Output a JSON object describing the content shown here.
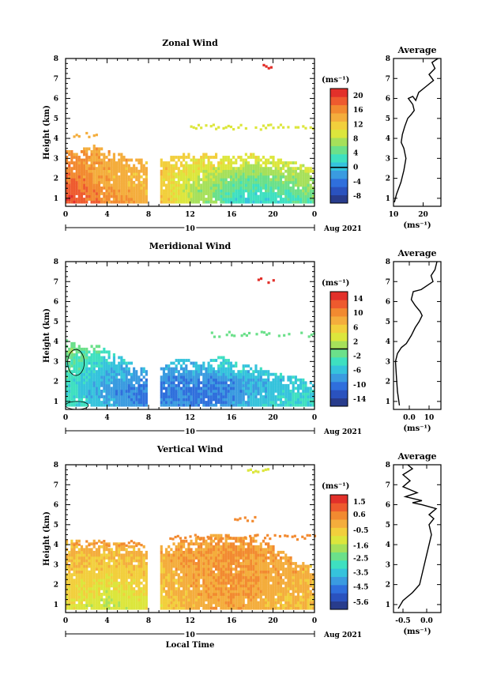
{
  "colors": {
    "palette": [
      "#283c8c",
      "#2a52be",
      "#2f6fdc",
      "#3a9be0",
      "#35c3dc",
      "#3ee0c0",
      "#6be08a",
      "#a6e05a",
      "#dce63c",
      "#f2cf3c",
      "#f4ad3c",
      "#f28a30",
      "#ee5a2e",
      "#e2302a"
    ],
    "contour": "#000000",
    "line": "#000000"
  },
  "chart_data": [
    {
      "type": "heatmap",
      "title": "Zonal Wind",
      "ylabel": "Height (km)",
      "xlabel": "",
      "x_ticks": [
        "0",
        "4",
        "8",
        "12",
        "16",
        "20",
        "0"
      ],
      "x_range_hours": [
        0,
        24
      ],
      "date_day": "10",
      "date_label": "Aug 2021",
      "y_ticks": [
        "1",
        "2",
        "3",
        "4",
        "5",
        "6",
        "7",
        "8"
      ],
      "y_range_km": [
        0.6,
        8.0
      ],
      "colorbar": {
        "unit": "(ms⁻¹)",
        "ticks": [
          "20",
          "16",
          "12",
          "8",
          "4",
          "0",
          "-4",
          "-8"
        ],
        "range": [
          -10,
          22
        ],
        "marker": 0
      },
      "gap_hours": [
        7.9,
        9.2
      ],
      "coverage": [
        {
          "x": [
            0,
            1,
            2,
            3,
            4,
            5,
            6,
            7,
            7.9
          ],
          "top_km": [
            3.4,
            3.2,
            3.5,
            3.6,
            3.3,
            3.2,
            3.1,
            2.9,
            2.8
          ]
        },
        {
          "x": [
            9.2,
            10,
            11,
            12,
            13,
            14,
            15,
            16,
            17,
            18,
            19,
            20,
            21,
            22,
            23,
            24
          ],
          "top_km": [
            2.9,
            3.0,
            3.1,
            3.2,
            3.1,
            3.2,
            3.1,
            3.0,
            3.1,
            3.2,
            3.0,
            3.0,
            2.9,
            2.8,
            2.6,
            2.4
          ]
        }
      ],
      "field": {
        "hours": [
          0,
          4,
          8,
          10,
          12,
          14,
          16,
          18,
          20,
          22,
          24
        ],
        "heights_km": [
          0.8,
          1.4,
          2.0,
          2.6,
          3.2,
          3.6
        ],
        "values_ms": [
          [
            20,
            16,
            14,
            12,
            8,
            6,
            2,
            1,
            2,
            3,
            5
          ],
          [
            19,
            15,
            13,
            11,
            8,
            6,
            4,
            3,
            4,
            5,
            6
          ],
          [
            18,
            14,
            13,
            11,
            9,
            8,
            6,
            5,
            6,
            7,
            7
          ],
          [
            17,
            14,
            14,
            12,
            10,
            10,
            9,
            8,
            9,
            9,
            9
          ],
          [
            16,
            15,
            14,
            12,
            12,
            12,
            11,
            11,
            11,
            11,
            11
          ],
          [
            15,
            14,
            14,
            12,
            12,
            13,
            12,
            12,
            12,
            12,
            12
          ]
        ]
      },
      "sparse_bands": [
        {
          "x_start": 0,
          "x_end": 3,
          "height_km": 4.1,
          "value_ms": 14
        },
        {
          "x_start": 12,
          "x_end": 24,
          "height_km": 4.5,
          "value_ms": 10
        },
        {
          "x_start": 19,
          "x_end": 20,
          "height_km": 7.5,
          "value_ms": 20
        }
      ],
      "contours": [],
      "profile": {
        "title": "Average",
        "xlabel": "(ms⁻¹)",
        "x_ticks": [
          10,
          20
        ],
        "x_range": [
          10,
          26
        ],
        "points": [
          [
            10.3,
            0.8
          ],
          [
            11.0,
            1.2
          ],
          [
            12.5,
            1.8
          ],
          [
            13.5,
            2.4
          ],
          [
            14.2,
            3.0
          ],
          [
            13.5,
            3.5
          ],
          [
            12.6,
            3.8
          ],
          [
            13.0,
            4.2
          ],
          [
            13.8,
            4.6
          ],
          [
            14.8,
            5.0
          ],
          [
            16.0,
            5.2
          ],
          [
            17.0,
            5.4
          ],
          [
            16.5,
            5.7
          ],
          [
            15.0,
            6.0
          ],
          [
            16.5,
            6.1
          ],
          [
            17.5,
            5.9
          ],
          [
            18.5,
            6.3
          ],
          [
            21.0,
            6.6
          ],
          [
            23.5,
            6.9
          ],
          [
            22.0,
            7.2
          ],
          [
            24.0,
            7.5
          ],
          [
            23.0,
            7.8
          ],
          [
            25.0,
            8.0
          ]
        ]
      }
    },
    {
      "type": "heatmap",
      "title": "Meridional Wind",
      "ylabel": "Height (km)",
      "xlabel": "",
      "x_ticks": [
        "0",
        "4",
        "8",
        "12",
        "16",
        "20",
        "0"
      ],
      "x_range_hours": [
        0,
        24
      ],
      "date_day": "10",
      "date_label": "Aug 2021",
      "y_ticks": [
        "1",
        "2",
        "3",
        "4",
        "5",
        "6",
        "7",
        "8"
      ],
      "y_range_km": [
        0.6,
        8.0
      ],
      "colorbar": {
        "unit": "(ms⁻¹)",
        "ticks": [
          "14",
          "10",
          "6",
          "2",
          "-2",
          "-6",
          "-10",
          "-14"
        ],
        "range": [
          -16,
          16
        ],
        "marker": 0
      },
      "gap_hours": [
        7.9,
        9.2
      ],
      "coverage": [
        {
          "x": [
            0,
            1,
            2,
            3,
            4,
            5,
            6,
            7,
            7.9
          ],
          "top_km": [
            4.0,
            3.8,
            3.6,
            3.9,
            3.5,
            3.3,
            3.0,
            2.7,
            2.5
          ]
        },
        {
          "x": [
            9.2,
            10,
            11,
            12,
            13,
            14,
            15,
            16,
            17,
            18,
            19,
            20,
            21,
            22,
            23,
            24
          ],
          "top_km": [
            2.6,
            2.9,
            3.1,
            3.0,
            2.8,
            3.0,
            3.2,
            3.0,
            2.7,
            2.8,
            2.6,
            2.5,
            2.3,
            2.2,
            2.0,
            1.8
          ]
        }
      ],
      "field": {
        "hours": [
          0,
          4,
          8,
          10,
          12,
          14,
          16,
          18,
          20,
          22,
          24
        ],
        "heights_km": [
          0.8,
          1.4,
          2.0,
          2.6,
          3.2,
          3.6
        ],
        "values_ms": [
          [
            -3,
            -7,
            -9,
            -8,
            -9,
            -10,
            -8,
            -6,
            -5,
            -4,
            -4
          ],
          [
            -4,
            -8,
            -10,
            -10,
            -10,
            -10,
            -9,
            -7,
            -6,
            -5,
            -5
          ],
          [
            -3,
            -7,
            -9,
            -9,
            -9,
            -9,
            -8,
            -7,
            -6,
            -6,
            -5
          ],
          [
            -2,
            -6,
            -7,
            -7,
            -7,
            -6,
            -5,
            -5,
            -4,
            -4,
            -4
          ],
          [
            -1,
            -4,
            -5,
            -5,
            -5,
            -4,
            -3,
            -3,
            -2,
            -2,
            -2
          ],
          [
            0,
            -2,
            -3,
            -3,
            -3,
            -3,
            -2,
            -2,
            -1,
            -1,
            -1
          ]
        ]
      },
      "sparse_bands": [
        {
          "x_start": 14,
          "x_end": 24,
          "height_km": 4.3,
          "value_ms": -1
        },
        {
          "x_start": 18.5,
          "x_end": 20,
          "height_km": 7.0,
          "value_ms": 14
        }
      ],
      "contours": [
        {
          "x0": 0.2,
          "x1": 1.8,
          "h0": 2.3,
          "h1": 3.6
        },
        {
          "x0": 0.0,
          "x1": 2.2,
          "h0": 0.6,
          "h1": 1.0
        }
      ],
      "profile": {
        "title": "Average",
        "xlabel": "(ms⁻¹)",
        "x_ticks": [
          0,
          10
        ],
        "x_range": [
          -8,
          16
        ],
        "points": [
          [
            -5.0,
            0.8
          ],
          [
            -6.0,
            1.5
          ],
          [
            -6.5,
            2.2
          ],
          [
            -7.0,
            3.0
          ],
          [
            -6.0,
            3.4
          ],
          [
            -4.0,
            3.7
          ],
          [
            -1.5,
            3.9
          ],
          [
            1.0,
            4.3
          ],
          [
            3.0,
            4.7
          ],
          [
            5.0,
            5.0
          ],
          [
            6.5,
            5.3
          ],
          [
            5.5,
            5.5
          ],
          [
            3.0,
            5.8
          ],
          [
            1.0,
            6.1
          ],
          [
            2.0,
            6.5
          ],
          [
            6.0,
            6.6
          ],
          [
            9.0,
            6.8
          ],
          [
            12.0,
            7.0
          ],
          [
            11.0,
            7.3
          ],
          [
            13.0,
            7.6
          ],
          [
            14.0,
            8.0
          ]
        ]
      }
    },
    {
      "type": "heatmap",
      "title": "Vertical Wind",
      "ylabel": "Height (km)",
      "xlabel": "Local Time",
      "x_ticks": [
        "0",
        "4",
        "8",
        "12",
        "16",
        "20",
        "0"
      ],
      "x_range_hours": [
        0,
        24
      ],
      "date_day": "10",
      "date_label": "Aug 2021",
      "y_ticks": [
        "1",
        "2",
        "3",
        "4",
        "5",
        "6",
        "7",
        "8"
      ],
      "y_range_km": [
        0.6,
        8.0
      ],
      "colorbar": {
        "unit": "(ms⁻¹)",
        "ticks": [
          "1.5",
          "0.6",
          "-0.5",
          "-1.6",
          "-2.5",
          "-3.5",
          "-4.5",
          "-5.6"
        ],
        "range": [
          -6.1,
          2.0
        ],
        "marker": null
      },
      "gap_hours": [
        7.9,
        9.2
      ],
      "coverage": [
        {
          "x": [
            0,
            1,
            2,
            3,
            4,
            5,
            6,
            7,
            7.9
          ],
          "top_km": [
            4.1,
            4.2,
            4.0,
            4.2,
            4.0,
            4.1,
            3.9,
            4.0,
            3.8
          ]
        },
        {
          "x": [
            9.2,
            10,
            11,
            12,
            13,
            14,
            15,
            16,
            17,
            18,
            19,
            20,
            21,
            22,
            23,
            24
          ],
          "top_km": [
            3.9,
            4.0,
            4.1,
            4.2,
            4.3,
            4.4,
            4.5,
            4.4,
            4.3,
            4.5,
            4.2,
            3.9,
            3.6,
            3.3,
            3.0,
            2.8
          ]
        }
      ],
      "field": {
        "hours": [
          0,
          4,
          8,
          10,
          12,
          14,
          16,
          18,
          20,
          22,
          24
        ],
        "heights_km": [
          0.8,
          1.4,
          2.0,
          2.6,
          3.2,
          3.6
        ],
        "values_ms": [
          [
            -1.0,
            -1.6,
            -1.0,
            -0.5,
            -0.2,
            0.0,
            0.1,
            0.0,
            -0.2,
            -0.3,
            -0.4
          ],
          [
            -0.7,
            -1.3,
            -0.8,
            -0.3,
            -0.1,
            0.1,
            0.2,
            0.1,
            -0.1,
            -0.2,
            -0.3
          ],
          [
            -0.5,
            -0.9,
            -0.6,
            -0.2,
            0.0,
            0.2,
            0.3,
            0.2,
            0.0,
            -0.1,
            -0.2
          ],
          [
            -0.4,
            -0.6,
            -0.4,
            -0.1,
            0.1,
            0.3,
            0.4,
            0.3,
            0.1,
            0.0,
            -0.1
          ],
          [
            -0.2,
            -0.3,
            -0.2,
            0.0,
            0.2,
            0.3,
            0.4,
            0.3,
            0.2,
            0.1,
            0.0
          ],
          [
            -0.1,
            -0.1,
            0.0,
            0.1,
            0.2,
            0.3,
            0.3,
            0.3,
            0.2,
            0.1,
            0.1
          ]
        ]
      },
      "sparse_bands": [
        {
          "x_start": 0,
          "x_end": 9,
          "height_km": 4.0,
          "value_ms": 0.3
        },
        {
          "x_start": 10,
          "x_end": 24,
          "height_km": 4.3,
          "value_ms": 0.4
        },
        {
          "x_start": 16,
          "x_end": 19,
          "height_km": 5.2,
          "value_ms": 0.4
        },
        {
          "x_start": 17.5,
          "x_end": 19.5,
          "height_km": 7.6,
          "value_ms": -0.9
        }
      ],
      "contours": [],
      "profile": {
        "title": "Average",
        "xlabel": "(ms⁻¹)",
        "x_ticks": [
          -0.5,
          0.0
        ],
        "x_range": [
          -0.7,
          0.3
        ],
        "points": [
          [
            -0.6,
            0.8
          ],
          [
            -0.5,
            1.2
          ],
          [
            -0.3,
            1.6
          ],
          [
            -0.15,
            2.0
          ],
          [
            -0.1,
            2.5
          ],
          [
            -0.05,
            3.0
          ],
          [
            0.0,
            3.5
          ],
          [
            0.05,
            4.0
          ],
          [
            0.1,
            4.5
          ],
          [
            0.05,
            5.0
          ],
          [
            0.15,
            5.3
          ],
          [
            0.05,
            5.5
          ],
          [
            0.2,
            5.8
          ],
          [
            -0.1,
            6.0
          ],
          [
            -0.3,
            6.1
          ],
          [
            -0.1,
            6.2
          ],
          [
            -0.45,
            6.4
          ],
          [
            -0.2,
            6.6
          ],
          [
            -0.5,
            6.9
          ],
          [
            -0.35,
            7.2
          ],
          [
            -0.5,
            7.5
          ],
          [
            -0.3,
            7.8
          ],
          [
            -0.4,
            8.0
          ]
        ]
      }
    }
  ]
}
